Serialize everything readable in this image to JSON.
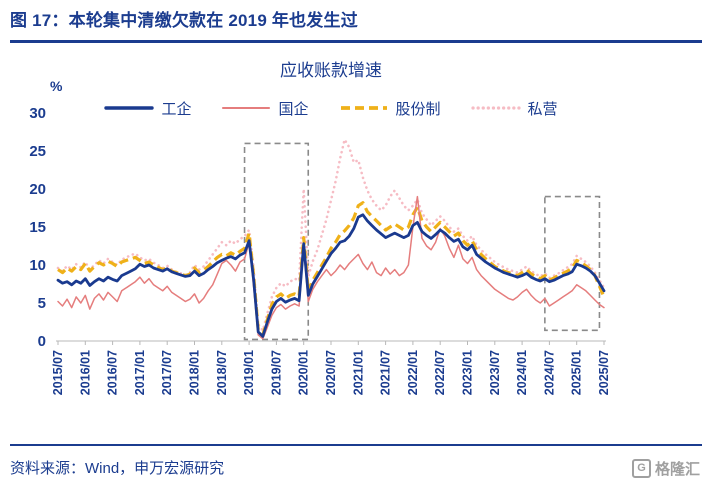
{
  "title": "图 17：本轮集中清缴欠款在 2019 年也发生过",
  "footer": {
    "source": "资料来源：Wind，申万宏源研究",
    "logo_text": "格隆汇",
    "logo_glyph": "G"
  },
  "chart_data": {
    "type": "line",
    "title": "应收账款增速",
    "ylabel": "%",
    "ylim": [
      0,
      30
    ],
    "y_ticks": [
      0,
      5,
      10,
      15,
      20,
      25,
      30
    ],
    "x_start": "2015/07",
    "x_end": "2025/07",
    "x_tick_labels": [
      "2015/07",
      "2016/01",
      "2016/07",
      "2017/01",
      "2017/07",
      "2018/01",
      "2018/07",
      "2019/01",
      "2019/07",
      "2020/01",
      "2020/07",
      "2021/01",
      "2021/07",
      "2022/01",
      "2022/07",
      "2023/01",
      "2023/07",
      "2024/01",
      "2024/07",
      "2025/01",
      "2025/07"
    ],
    "legend_position": "top",
    "grid": false,
    "series": [
      {
        "name": "工企",
        "color": "#1a3a8f",
        "style": "solid-thick",
        "values": [
          8.0,
          7.6,
          7.8,
          7.4,
          7.9,
          7.6,
          8.2,
          7.3,
          7.8,
          8.2,
          7.9,
          8.4,
          8.1,
          7.9,
          8.6,
          8.9,
          9.2,
          9.5,
          10.1,
          9.8,
          10.0,
          9.6,
          9.4,
          9.2,
          9.5,
          9.1,
          8.9,
          8.7,
          8.5,
          8.6,
          9.2,
          8.6,
          8.9,
          9.4,
          9.8,
          10.3,
          10.6,
          10.9,
          11.1,
          10.8,
          11.3,
          11.6,
          13.2,
          8.0,
          1.2,
          0.6,
          2.5,
          4.2,
          5.2,
          5.6,
          5.1,
          5.4,
          5.6,
          5.3,
          12.8,
          6.0,
          7.5,
          8.5,
          9.5,
          10.5,
          11.5,
          12.2,
          13.0,
          13.2,
          13.8,
          14.8,
          16.3,
          16.6,
          15.8,
          15.2,
          14.6,
          14.1,
          13.6,
          13.9,
          14.2,
          13.9,
          13.6,
          13.9,
          15.2,
          15.6,
          14.4,
          13.9,
          13.5,
          14.0,
          14.6,
          14.2,
          13.6,
          13.1,
          13.4,
          12.4,
          12.0,
          12.6,
          11.4,
          10.9,
          10.4,
          10.0,
          9.6,
          9.3,
          9.0,
          8.8,
          8.6,
          8.4,
          8.6,
          8.9,
          8.4,
          8.1,
          7.9,
          8.2,
          7.8,
          8.0,
          8.3,
          8.6,
          8.8,
          9.1,
          10.1,
          9.9,
          9.6,
          9.2,
          8.6,
          7.6,
          6.6
        ]
      },
      {
        "name": "国企",
        "color": "#e57d7d",
        "style": "solid-thin",
        "values": [
          5.2,
          4.6,
          5.5,
          4.4,
          5.8,
          5.0,
          6.0,
          4.2,
          5.6,
          6.2,
          5.4,
          6.4,
          5.8,
          5.2,
          6.6,
          7.0,
          7.4,
          7.8,
          8.4,
          7.6,
          8.2,
          7.4,
          7.0,
          6.6,
          7.2,
          6.4,
          6.0,
          5.6,
          5.2,
          5.5,
          6.2,
          5.0,
          5.6,
          6.6,
          7.4,
          8.8,
          10.2,
          10.6,
          10.0,
          9.2,
          10.4,
          10.8,
          13.0,
          7.0,
          0.8,
          0.3,
          1.8,
          3.4,
          4.4,
          4.8,
          4.2,
          4.6,
          4.9,
          4.6,
          12.4,
          5.2,
          6.8,
          7.8,
          8.6,
          9.4,
          8.6,
          9.2,
          10.0,
          9.4,
          10.2,
          10.8,
          11.4,
          10.2,
          9.4,
          10.4,
          9.0,
          8.6,
          9.6,
          8.8,
          9.4,
          8.6,
          9.0,
          10.0,
          15.0,
          19.0,
          13.5,
          12.5,
          12.0,
          13.0,
          14.8,
          13.8,
          12.2,
          11.0,
          12.6,
          10.8,
          10.2,
          11.0,
          9.4,
          8.6,
          8.0,
          7.4,
          6.8,
          6.4,
          6.0,
          5.6,
          5.4,
          5.8,
          6.4,
          6.8,
          6.0,
          5.4,
          5.0,
          5.6,
          4.6,
          5.0,
          5.4,
          5.8,
          6.2,
          6.6,
          7.4,
          7.0,
          6.6,
          6.0,
          5.4,
          4.8,
          4.4
        ]
      },
      {
        "name": "股份制",
        "color": "#efb119",
        "style": "dashed",
        "values": [
          9.4,
          9.0,
          9.6,
          9.2,
          9.8,
          9.4,
          10.2,
          9.2,
          9.8,
          10.3,
          10.0,
          10.5,
          10.2,
          9.8,
          10.4,
          10.6,
          10.8,
          11.0,
          10.6,
          10.2,
          10.4,
          10.0,
          9.7,
          9.4,
          9.6,
          9.2,
          9.0,
          8.8,
          8.6,
          8.8,
          9.6,
          9.0,
          9.3,
          9.8,
          10.4,
          11.0,
          11.4,
          11.2,
          11.6,
          11.3,
          11.8,
          12.2,
          14.2,
          8.5,
          1.5,
          0.8,
          2.8,
          4.8,
          5.8,
          6.2,
          5.6,
          6.0,
          6.2,
          5.9,
          13.6,
          6.5,
          8.0,
          9.0,
          10.0,
          11.0,
          12.2,
          13.0,
          14.0,
          14.5,
          15.2,
          16.2,
          17.8,
          18.2,
          17.0,
          16.4,
          15.8,
          15.2,
          14.6,
          15.0,
          15.4,
          15.0,
          14.6,
          15.0,
          16.6,
          17.6,
          15.8,
          15.0,
          14.4,
          15.0,
          15.6,
          15.0,
          14.4,
          13.8,
          14.2,
          13.2,
          12.6,
          13.2,
          12.0,
          11.4,
          10.8,
          10.3,
          9.8,
          9.5,
          9.2,
          9.0,
          8.8,
          8.6,
          9.0,
          9.4,
          8.8,
          8.5,
          8.2,
          8.6,
          8.0,
          8.3,
          8.6,
          8.9,
          9.2,
          9.6,
          10.6,
          10.3,
          9.9,
          9.4,
          8.6,
          7.2,
          5.8
        ]
      },
      {
        "name": "私营",
        "color": "#f6bcc4",
        "style": "dotted",
        "values": [
          9.6,
          9.2,
          9.9,
          9.4,
          10.1,
          9.7,
          10.4,
          9.4,
          10.0,
          10.6,
          10.2,
          10.8,
          10.4,
          10.0,
          10.7,
          11.0,
          11.3,
          11.5,
          11.0,
          10.6,
          10.8,
          10.3,
          10.0,
          9.6,
          9.9,
          9.4,
          9.1,
          8.9,
          8.7,
          9.0,
          10.0,
          9.4,
          9.8,
          10.6,
          11.4,
          12.2,
          13.0,
          12.6,
          13.2,
          12.8,
          13.4,
          13.8,
          14.6,
          9.5,
          2.2,
          1.4,
          3.6,
          5.8,
          7.0,
          7.6,
          7.2,
          7.8,
          8.2,
          8.0,
          20.0,
          8.5,
          10.5,
          12.0,
          14.0,
          16.0,
          18.5,
          21.0,
          24.0,
          26.5,
          25.5,
          23.5,
          23.8,
          21.5,
          19.8,
          18.6,
          17.8,
          17.2,
          17.8,
          19.0,
          19.8,
          18.8,
          17.8,
          17.2,
          17.8,
          18.6,
          16.8,
          16.0,
          15.2,
          15.8,
          16.4,
          15.8,
          15.0,
          14.4,
          14.8,
          13.8,
          13.2,
          13.8,
          12.6,
          12.0,
          11.4,
          10.9,
          10.4,
          10.0,
          9.7,
          9.4,
          9.2,
          9.0,
          9.4,
          9.8,
          9.2,
          8.8,
          8.5,
          8.9,
          8.3,
          8.6,
          8.9,
          9.3,
          9.7,
          10.1,
          11.2,
          10.8,
          10.4,
          9.8,
          9.0,
          8.0,
          7.0
        ]
      }
    ],
    "highlight_boxes": [
      {
        "x_start": "2018/12",
        "x_end": "2020/02",
        "y_min": 0.2,
        "y_max": 26.0
      },
      {
        "x_start": "2024/06",
        "x_end": "2025/06",
        "y_min": 1.4,
        "y_max": 19.0
      }
    ]
  }
}
